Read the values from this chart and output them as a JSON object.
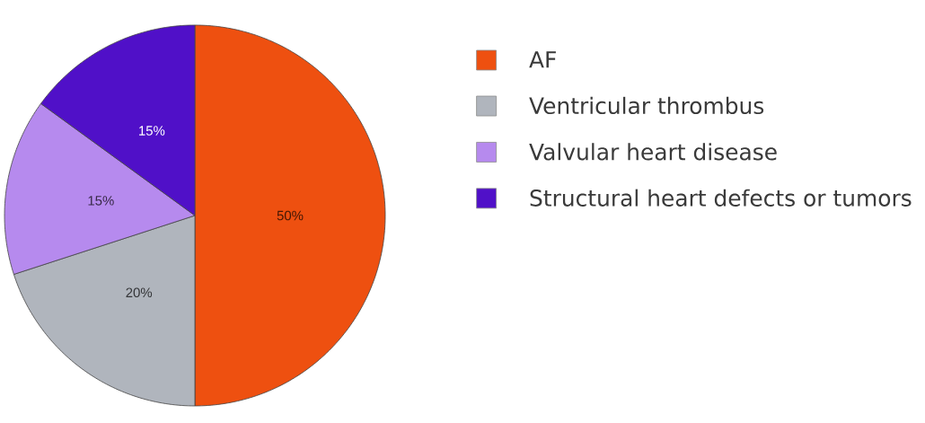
{
  "chart_data": {
    "type": "pie",
    "categories": [
      "AF",
      "Ventricular thrombus",
      "Valvular heart disease",
      "Structural heart defects or tumors"
    ],
    "values": [
      50,
      20,
      15,
      15
    ],
    "colors": [
      "#ee5010",
      "#b0b5bd",
      "#b68aee",
      "#5010c8"
    ],
    "value_labels": [
      "50%",
      "20%",
      "15%",
      "15%"
    ],
    "legend": "right"
  }
}
